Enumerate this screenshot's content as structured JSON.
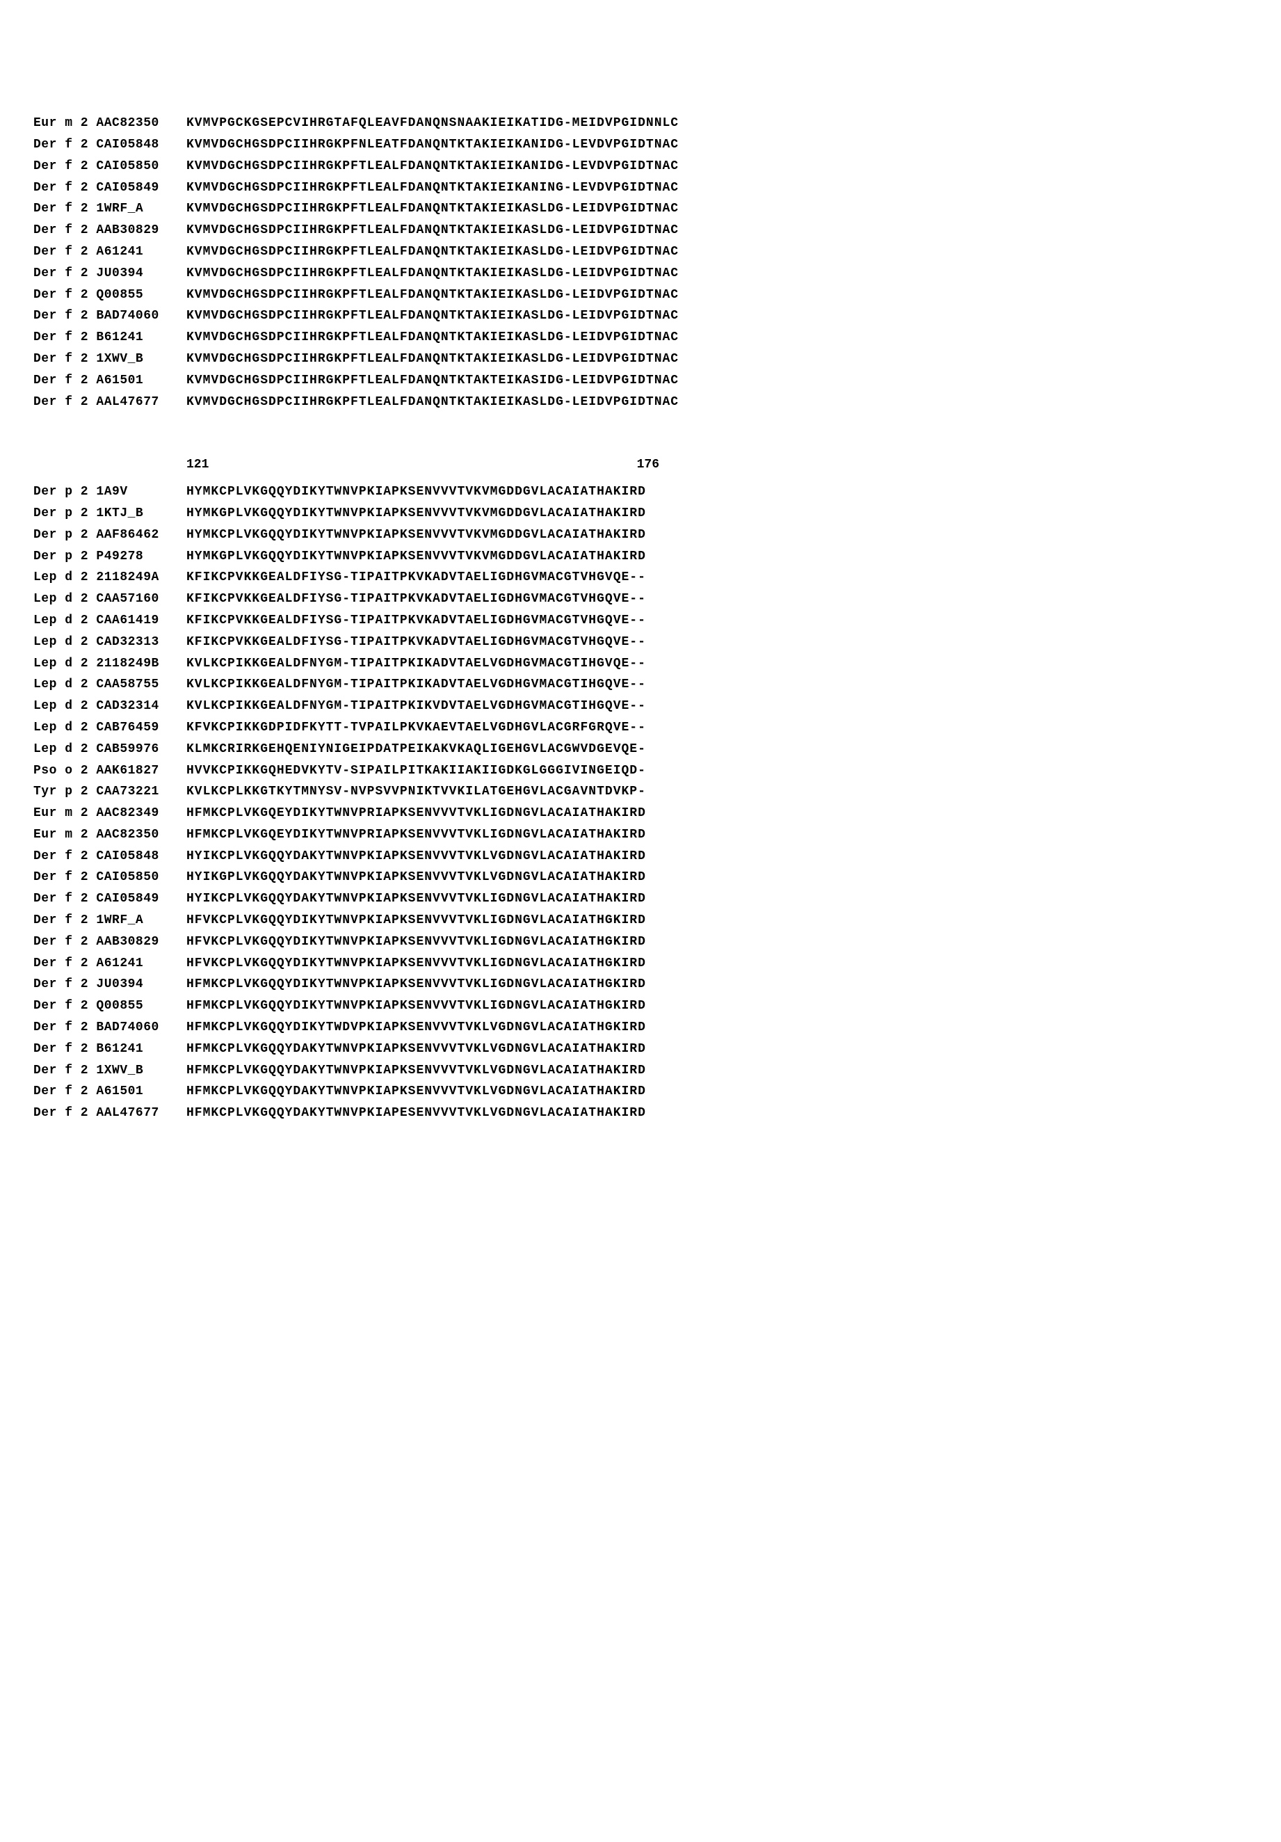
{
  "font_family": "Courier New, monospace",
  "font_size_pt": 14,
  "background_color": "#ffffff",
  "text_color": "#000000",
  "block1": {
    "rows": [
      {
        "label": "Eur m 2 AAC82350",
        "seq": "KVMVPGCKGSEPCVIHRGTAFQLEAVFDANQNSNAAKIEIKATIDG-MEIDVPGIDNNLC"
      },
      {
        "label": "Der f 2 CAI05848",
        "seq": "KVMVDGCHGSDPCIIHRGKPFNLEATFDANQNTKTAKIEIKANIDG-LEVDVPGIDTNAC"
      },
      {
        "label": "Der f 2 CAI05850",
        "seq": "KVMVDGCHGSDPCIIHRGKPFTLEALFDANQNTKTAKIEIKANIDG-LEVDVPGIDTNAC"
      },
      {
        "label": "Der f 2 CAI05849",
        "seq": "KVMVDGCHGSDPCIIHRGKPFTLEALFDANQNTKTAKIEIKANING-LEVDVPGIDTNAC"
      },
      {
        "label": "Der f 2 1WRF_A",
        "seq": "KVMVDGCHGSDPCIIHRGKPFTLEALFDANQNTKTAKIEIKASLDG-LEIDVPGIDTNAC"
      },
      {
        "label": "Der f 2 AAB30829",
        "seq": "KVMVDGCHGSDPCIIHRGKPFTLEALFDANQNTKTAKIEIKASLDG-LEIDVPGIDTNAC"
      },
      {
        "label": "Der f 2 A61241",
        "seq": "KVMVDGCHGSDPCIIHRGKPFTLEALFDANQNTKTAKIEIKASLDG-LEIDVPGIDTNAC"
      },
      {
        "label": "Der f 2 JU0394",
        "seq": "KVMVDGCHGSDPCIIHRGKPFTLEALFDANQNTKTAKIEIKASLDG-LEIDVPGIDTNAC"
      },
      {
        "label": "Der f 2 Q00855",
        "seq": "KVMVDGCHGSDPCIIHRGKPFTLEALFDANQNTKTAKIEIKASLDG-LEIDVPGIDTNAC"
      },
      {
        "label": "Der f 2 BAD74060",
        "seq": "KVMVDGCHGSDPCIIHRGKPFTLEALFDANQNTKTAKIEIKASLDG-LEIDVPGIDTNAC"
      },
      {
        "label": "Der f 2 B61241",
        "seq": "KVMVDGCHGSDPCIIHRGKPFTLEALFDANQNTKTAKIEIKASLDG-LEIDVPGIDTNAC"
      },
      {
        "label": "Der f 2 1XWV_B",
        "seq": "KVMVDGCHGSDPCIIHRGKPFTLEALFDANQNTKTAKIEIKASLDG-LEIDVPGIDTNAC"
      },
      {
        "label": "Der f 2 A61501",
        "seq": "KVMVDGCHGSDPCIIHRGKPFTLEALFDANQNTKTAKTEIKASIDG-LEIDVPGIDTNAC"
      },
      {
        "label": "Der f 2 AAL47677",
        "seq": "KVMVDGCHGSDPCIIHRGKPFTLEALFDANQNTKTAKIEIKASLDG-LEIDVPGIDTNAC"
      }
    ]
  },
  "positions": {
    "start": "121",
    "end": "176"
  },
  "block2": {
    "rows": [
      {
        "label": "Der p 2 1A9V",
        "seq": "HYMKCPLVKGQQYDIKYTWNVPKIAPKSENVVVTVKVMGDDGVLACAIATHAKIRD"
      },
      {
        "label": "Der p 2 1KTJ_B",
        "seq": "HYMKGPLVKGQQYDIKYTWNVPKIAPKSENVVVTVKVMGDDGVLACAIATHAKIRD"
      },
      {
        "label": "Der p 2 AAF86462",
        "seq": "HYMKCPLVKGQQYDIKYTWNVPKIAPKSENVVVTVKVMGDDGVLACAIATHAKIRD"
      },
      {
        "label": "Der p 2 P49278",
        "seq": "HYMKGPLVKGQQYDIKYTWNVPKIAPKSENVVVTVKVMGDDGVLACAIATHAKIRD"
      },
      {
        "label": "Lep d 2 2118249A",
        "seq": "KFIKCPVKKGEALDFIYSG-TIPAITPKVKADVTAELIGDHGVMACGTVHGVQE--"
      },
      {
        "label": "Lep d 2 CAA57160",
        "seq": "KFIKCPVKKGEALDFIYSG-TIPAITPKVKADVTAELIGDHGVMACGTVHGQVE--"
      },
      {
        "label": "Lep d 2 CAA61419",
        "seq": "KFIKCPVKKGEALDFIYSG-TIPAITPKVKADVTAELIGDHGVMACGTVHGQVE--"
      },
      {
        "label": "Lep d 2 CAD32313",
        "seq": "KFIKCPVKKGEALDFIYSG-TIPAITPKVKADVTAELIGDHGVMACGTVHGQVE--"
      },
      {
        "label": "Lep d 2 2118249B",
        "seq": "KVLKCPIKKGEALDFNYGM-TIPAITPKIKADVTAELVGDHGVMACGTIHGVQE--"
      },
      {
        "label": "Lep d 2 CAA58755",
        "seq": "KVLKCPIKKGEALDFNYGM-TIPAITPKIKADVTAELVGDHGVMACGTIHGQVE--"
      },
      {
        "label": "Lep d 2 CAD32314",
        "seq": "KVLKCPIKKGEALDFNYGM-TIPAITPKIKVDVTAELVGDHGVMACGTIHGQVE--"
      },
      {
        "label": "Lep d 2 CAB76459",
        "seq": "KFVKCPIKKGDPIDFKYTT-TVPAILPKVKAEVTAELVGDHGVLACGRFGRQVE--"
      },
      {
        "label": "Lep d 2 CAB59976",
        "seq": "KLMKCRIRKGEHQENIYNIGEIPDATPEIKAKVKAQLIGEHGVLACGWVDGEVQE-"
      },
      {
        "label": "Pso o 2 AAK61827",
        "seq": "HVVKCPIKKGQHEDVKYTV-SIPAILPITKAKIIAKIIGDKGLGGGIVINGEIQD-"
      },
      {
        "label": "Tyr p 2 CAA73221",
        "seq": "KVLKCPLKKGTKYTMNYSV-NVPSVVPNIKTVVKILATGEHGVLACGAVNTDVKP-"
      },
      {
        "label": "Eur m 2 AAC82349",
        "seq": "HFMKCPLVKGQEYDIKYTWNVPRIAPKSENVVVTVKLIGDNGVLACAIATHAKIRD"
      },
      {
        "label": "Eur m 2 AAC82350",
        "seq": "HFMKCPLVKGQEYDIKYTWNVPRIAPKSENVVVTVKLIGDNGVLACAIATHAKIRD"
      },
      {
        "label": "Der f 2 CAI05848",
        "seq": "HYIKCPLVKGQQYDAKYTWNVPKIAPKSENVVVTVKLVGDNGVLACAIATHAKIRD"
      },
      {
        "label": "Der f 2 CAI05850",
        "seq": "HYIKGPLVKGQQYDAKYTWNVPKIAPKSENVVVTVKLVGDNGVLACAIATHAKIRD"
      },
      {
        "label": "Der f 2 CAI05849",
        "seq": "HYIKCPLVKGQQYDAKYTWNVPKIAPKSENVVVTVKLIGDNGVLACAIATHAKIRD"
      },
      {
        "label": "Der f 2 1WRF_A",
        "seq": "HFVKCPLVKGQQYDIKYTWNVPKIAPKSENVVVTVKLIGDNGVLACAIATHGKIRD"
      },
      {
        "label": "Der f 2 AAB30829",
        "seq": "HFVKCPLVKGQQYDIKYTWNVPKIAPKSENVVVTVKLIGDNGVLACAIATHGKIRD"
      },
      {
        "label": "Der f 2 A61241",
        "seq": "HFVKCPLVKGQQYDIKYTWNVPKIAPKSENVVVTVKLIGDNGVLACAIATHGKIRD"
      },
      {
        "label": "Der f 2 JU0394",
        "seq": "HFMKCPLVKGQQYDIKYTWNVPKIAPKSENVVVTVKLIGDNGVLACAIATHGKIRD"
      },
      {
        "label": "Der f 2 Q00855",
        "seq": "HFMKCPLVKGQQYDIKYTWNVPKIAPKSENVVVTVKLIGDNGVLACAIATHGKIRD"
      },
      {
        "label": "Der f 2 BAD74060",
        "seq": "HFMKCPLVKGQQYDIKYTWDVPKIAPKSENVVVTVKLVGDNGVLACAIATHGKIRD"
      },
      {
        "label": "Der f 2 B61241",
        "seq": "HFMKCPLVKGQQYDAKYTWNVPKIAPKSENVVVTVKLVGDNGVLACAIATHAKIRD"
      },
      {
        "label": "Der f 2 1XWV_B",
        "seq": "HFMKCPLVKGQQYDAKYTWNVPKIAPKSENVVVTVKLVGDNGVLACAIATHAKIRD"
      },
      {
        "label": "Der f 2 A61501",
        "seq": "HFMKCPLVKGQQYDAKYTWNVPKIAPKSENVVVTVKLVGDNGVLACAIATHAKIRD"
      },
      {
        "label": "Der f 2 AAL47677",
        "seq": "HFMKCPLVKGQQYDAKYTWNVPKIAPESENVVVTVKLVGDNGVLACAIATHAKIRD"
      }
    ]
  }
}
